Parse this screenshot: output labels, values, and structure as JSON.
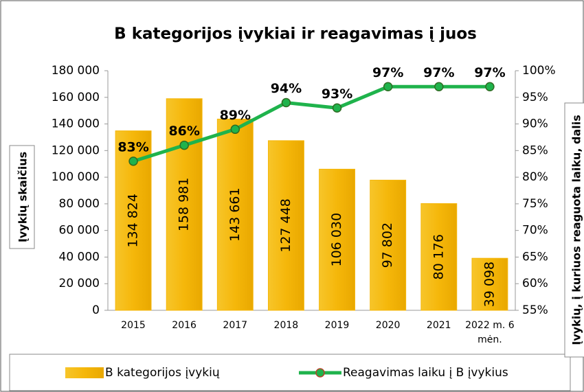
{
  "chart_data": {
    "type": "bar+line",
    "title": "B kategorijos įvykiai ir reagavimas į juos",
    "y_label": "Įvykių skaičius",
    "y2_label": "Įvykių, į kuriuos reaguota laiku, dalis",
    "categories": [
      "2015",
      "2016",
      "2017",
      "2018",
      "2019",
      "2020",
      "2021",
      "2022 m. 6 mėn."
    ],
    "series": [
      {
        "name": "B kategorijos įvykių",
        "type": "bar",
        "color": "#f5b70a",
        "values": [
          134824,
          158981,
          143661,
          127448,
          106030,
          97802,
          80176,
          39098
        ],
        "value_labels": [
          "134 824",
          "158 981",
          "143 661",
          "127 448",
          "106 030",
          "97 802",
          "80 176",
          "39 098"
        ]
      },
      {
        "name": "Reagavimas laiku į B įvykius",
        "type": "line",
        "axis": "y2",
        "color": "#1fb34c",
        "values": [
          83,
          86,
          89,
          94,
          93,
          97,
          97,
          97
        ],
        "value_labels": [
          "83%",
          "86%",
          "89%",
          "94%",
          "93%",
          "97%",
          "97%",
          "97%"
        ]
      }
    ],
    "ylim": [
      0,
      180000
    ],
    "yticks": [
      0,
      {
        "value": 20000,
        "label": "20 000"
      },
      {
        "value": 40000,
        "label": "40 000"
      },
      {
        "value": 60000,
        "label": "60 000"
      },
      {
        "value": 80000,
        "label": "80 000"
      },
      {
        "value": 100000,
        "label": "100 000"
      },
      {
        "value": 120000,
        "label": "120 000"
      },
      {
        "value": 140000,
        "label": "140 000"
      },
      {
        "value": 160000,
        "label": "160 000"
      },
      {
        "value": 180000,
        "label": "180 000"
      }
    ],
    "y2lim": [
      55,
      100
    ],
    "y2ticks": [
      {
        "value": 55,
        "label": "55%"
      },
      {
        "value": 60,
        "label": "60%"
      },
      {
        "value": 65,
        "label": "65%"
      },
      {
        "value": 70,
        "label": "70%"
      },
      {
        "value": 75,
        "label": "75%"
      },
      {
        "value": 80,
        "label": "80%"
      },
      {
        "value": 85,
        "label": "85%"
      },
      {
        "value": 90,
        "label": "90%"
      },
      {
        "value": 95,
        "label": "95%"
      },
      {
        "value": 100,
        "label": "100%"
      }
    ],
    "legend": "bottom"
  }
}
